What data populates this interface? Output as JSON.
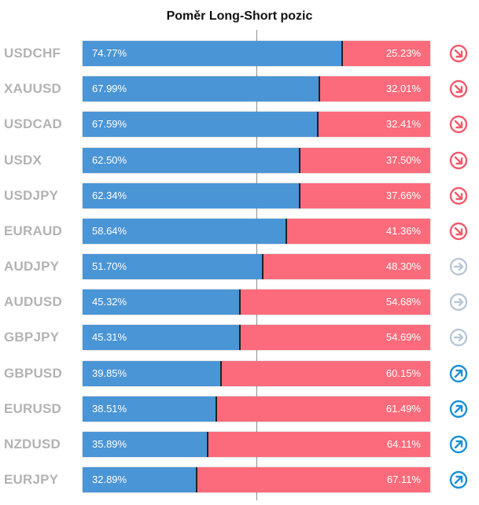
{
  "chart_data": {
    "type": "bar",
    "title": "Poměr Long-Short pozic",
    "orientation": "horizontal-stacked-100",
    "categories": [
      "USDCHF",
      "XAUUSD",
      "USDCAD",
      "USDX",
      "USDJPY",
      "EURAUD",
      "AUDJPY",
      "AUDUSD",
      "GBPJPY",
      "GBPUSD",
      "EURUSD",
      "NZDUSD",
      "EURJPY"
    ],
    "series": [
      {
        "values": [
          74.77,
          67.99,
          67.59,
          62.5,
          62.34,
          58.64,
          51.7,
          45.32,
          45.31,
          39.85,
          38.51,
          35.89,
          32.89
        ]
      },
      {
        "values": [
          25.23,
          32.01,
          32.41,
          37.5,
          37.66,
          41.36,
          48.3,
          54.68,
          54.69,
          60.15,
          61.49,
          64.11,
          67.11
        ]
      }
    ],
    "long_labels": [
      "74.77%",
      "67.99%",
      "67.59%",
      "62.50%",
      "62.34%",
      "58.64%",
      "51.70%",
      "45.32%",
      "45.31%",
      "39.85%",
      "38.51%",
      "35.89%",
      "32.89%"
    ],
    "short_labels": [
      "25.23%",
      "32.01%",
      "32.41%",
      "37.50%",
      "37.66%",
      "41.36%",
      "48.30%",
      "54.68%",
      "54.69%",
      "60.15%",
      "61.49%",
      "64.11%",
      "67.11%"
    ],
    "trend_icons": [
      "arrow-down-right-icon",
      "arrow-down-right-icon",
      "arrow-down-right-icon",
      "arrow-down-right-icon",
      "arrow-down-right-icon",
      "arrow-down-right-icon",
      "arrow-right-icon",
      "arrow-right-icon",
      "arrow-right-icon",
      "arrow-up-right-icon",
      "arrow-up-right-icon",
      "arrow-up-right-icon",
      "arrow-up-right-icon"
    ],
    "xlim": [
      0,
      100
    ],
    "reference_line": 50,
    "colors": {
      "long": "#4a95d6",
      "short": "#fb6b7b",
      "down": "#f25a6b",
      "neutral": "#b9c7d6",
      "up": "#1a90d6"
    }
  }
}
